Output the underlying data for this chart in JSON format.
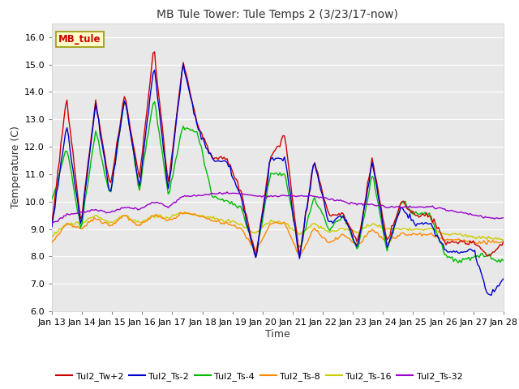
{
  "title": "MB Tule Tower: Tule Temps 2 (3/23/17-now)",
  "xlabel": "Time",
  "ylabel": "Temperature (C)",
  "ylim": [
    6.0,
    16.5
  ],
  "yticks": [
    6.0,
    7.0,
    8.0,
    9.0,
    10.0,
    11.0,
    12.0,
    13.0,
    14.0,
    15.0,
    16.0
  ],
  "bg_color": "#e8e8e8",
  "fig_color": "#ffffff",
  "series_colors": {
    "Tul2_Tw+2": "#cc0000",
    "Tul2_Ts-2": "#0000cc",
    "Tul2_Ts-4": "#00bb00",
    "Tul2_Ts-8": "#ff8800",
    "Tul2_Ts-16": "#cccc00",
    "Tul2_Ts-32": "#9900cc"
  },
  "xtick_labels": [
    "Jan 13",
    "Jan 14",
    "Jan 15",
    "Jan 16",
    "Jan 17",
    "Jan 18",
    "Jan 19",
    "Jan 20",
    "Jan 21",
    "Jan 22",
    "Jan 23",
    "Jan 24",
    "Jan 25",
    "Jan 26",
    "Jan 27",
    "Jan 28"
  ],
  "annotation_box": "MB_tule",
  "annotation_color": "#cc0000",
  "annotation_bg": "#ffffcc",
  "annotation_border": "#999900",
  "tw2": [
    9.2,
    13.8,
    9.2,
    13.7,
    10.5,
    13.9,
    10.8,
    15.6,
    10.6,
    15.1,
    12.8,
    11.6,
    11.6,
    10.3,
    8.0,
    11.6,
    12.4,
    8.0,
    11.5,
    9.5,
    9.5,
    8.5,
    11.6,
    8.5,
    10.0,
    9.5,
    9.5,
    8.5,
    8.5,
    8.5,
    8.0,
    8.5
  ],
  "ts2": [
    9.1,
    12.8,
    9.1,
    13.6,
    10.2,
    13.8,
    10.5,
    15.0,
    10.4,
    15.0,
    12.7,
    11.5,
    11.5,
    10.1,
    7.9,
    11.5,
    11.6,
    7.9,
    11.5,
    9.2,
    9.5,
    8.3,
    11.5,
    8.3,
    9.8,
    9.2,
    9.2,
    8.2,
    8.2,
    8.2,
    6.5,
    7.2
  ],
  "ts4": [
    10.0,
    12.0,
    9.0,
    12.6,
    10.2,
    13.8,
    10.4,
    13.8,
    10.2,
    12.8,
    12.5,
    10.2,
    10.0,
    9.8,
    8.0,
    11.0,
    11.0,
    8.2,
    10.2,
    9.0,
    9.5,
    8.2,
    11.0,
    8.2,
    10.0,
    9.5,
    9.5,
    8.0,
    7.8,
    8.0,
    8.0,
    7.8
  ],
  "ts8": [
    8.5,
    9.2,
    9.0,
    9.4,
    9.1,
    9.5,
    9.1,
    9.5,
    9.3,
    9.6,
    9.5,
    9.3,
    9.2,
    9.0,
    8.2,
    9.2,
    9.2,
    8.0,
    9.0,
    8.5,
    8.8,
    8.4,
    9.0,
    8.5,
    8.8,
    8.8,
    8.8,
    8.6,
    8.6,
    8.5,
    8.5,
    8.5
  ],
  "ts16": [
    8.7,
    9.2,
    9.2,
    9.5,
    9.2,
    9.5,
    9.2,
    9.5,
    9.4,
    9.6,
    9.5,
    9.4,
    9.3,
    9.2,
    8.8,
    9.3,
    9.2,
    8.8,
    9.2,
    8.9,
    9.0,
    8.9,
    9.2,
    9.0,
    9.0,
    9.0,
    9.0,
    8.8,
    8.8,
    8.7,
    8.7,
    8.6
  ],
  "ts32": [
    9.2,
    9.5,
    9.6,
    9.7,
    9.6,
    9.8,
    9.7,
    10.0,
    9.8,
    10.2,
    10.2,
    10.3,
    10.3,
    10.3,
    10.2,
    10.2,
    10.2,
    10.2,
    10.2,
    10.1,
    10.0,
    9.9,
    9.9,
    9.8,
    9.8,
    9.8,
    9.8,
    9.7,
    9.6,
    9.5,
    9.4,
    9.4
  ]
}
